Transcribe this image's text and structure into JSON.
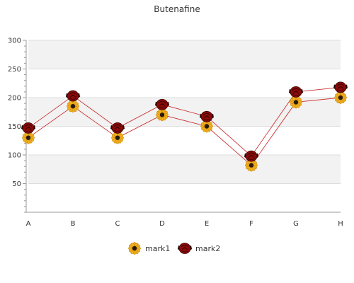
{
  "chart_data": {
    "type": "line",
    "title": "Butenafine",
    "xlabel": "",
    "ylabel": "",
    "categories": [
      "A",
      "B",
      "C",
      "D",
      "E",
      "F",
      "G",
      "H"
    ],
    "ylim": [
      0,
      300
    ],
    "yticks": [
      50,
      100,
      150,
      200,
      250,
      300
    ],
    "grid": true,
    "legend": "bottom-center",
    "series": [
      {
        "name": "mark1",
        "values": [
          130,
          185,
          130,
          170,
          150,
          82,
          192,
          200
        ],
        "color": "#cc3333",
        "marker": "sunflower-icon"
      },
      {
        "name": "mark2",
        "values": [
          147,
          203,
          147,
          188,
          167,
          98,
          210,
          218
        ],
        "color": "#cc3333",
        "marker": "rose-icon"
      }
    ]
  }
}
